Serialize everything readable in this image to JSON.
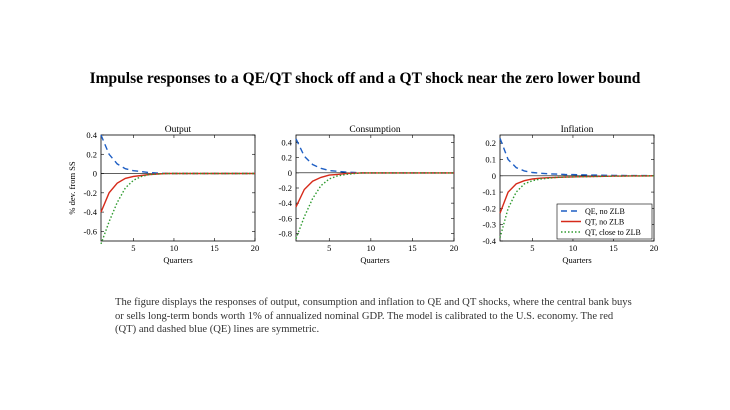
{
  "figure": {
    "title": "Impulse responses to a QE/QT shock off and a QT shock near the zero lower bound",
    "caption": "The figure displays the responses of output, consumption and inflation to QE and QT shocks, where the central bank buys or sells long-term bonds worth 1% of annualized nominal GDP. The model is calibrated to the U.S. economy. The red (QT) and dashed blue (QE) lines are symmetric."
  },
  "series_styles": {
    "QE, no ZLB": {
      "color": "#1f5fc4",
      "dash": "6,4"
    },
    "QT, no ZLB": {
      "color": "#d62a1a",
      "dash": ""
    },
    "QT, close to ZLB": {
      "color": "#2e9a2e",
      "dash": "1.5,2"
    }
  },
  "chart_data": [
    {
      "type": "line",
      "title": "Output",
      "xlabel": "Quarters",
      "ylabel": "% dev. from SS",
      "xlim": [
        1,
        20
      ],
      "ylim": [
        -0.7,
        0.4
      ],
      "xticks": [
        5,
        10,
        15,
        20
      ],
      "yticks": [
        0.4,
        0.2,
        0,
        -0.2,
        -0.4,
        -0.6
      ],
      "grid": false,
      "legend": null,
      "x": [
        1,
        2,
        3,
        4,
        5,
        6,
        7,
        8,
        9,
        10,
        11,
        12,
        13,
        14,
        15,
        16,
        17,
        18,
        19,
        20
      ],
      "series": [
        {
          "name": "QE, no ZLB",
          "values": [
            0.4,
            0.2,
            0.1,
            0.05,
            0.03,
            0.02,
            0.01,
            0.005,
            0,
            0,
            0,
            0,
            0,
            0,
            0,
            0,
            0,
            0,
            0,
            0
          ]
        },
        {
          "name": "QT, no ZLB",
          "values": [
            -0.4,
            -0.2,
            -0.1,
            -0.05,
            -0.03,
            -0.02,
            -0.01,
            -0.005,
            0,
            0,
            0,
            0,
            0,
            0,
            0,
            0,
            0,
            0,
            0,
            0
          ]
        },
        {
          "name": "QT, close to ZLB",
          "values": [
            -0.73,
            -0.5,
            -0.3,
            -0.15,
            -0.07,
            -0.03,
            -0.01,
            -0.005,
            0,
            0,
            0,
            0,
            0,
            0,
            0,
            0,
            0,
            0,
            0,
            0
          ]
        }
      ]
    },
    {
      "type": "line",
      "title": "Consumption",
      "xlabel": "Quarters",
      "ylabel": "",
      "xlim": [
        1,
        20
      ],
      "ylim": [
        -0.9,
        0.5
      ],
      "xticks": [
        5,
        10,
        15,
        20
      ],
      "yticks": [
        0.4,
        0.2,
        0,
        -0.2,
        -0.4,
        -0.6,
        -0.8
      ],
      "grid": false,
      "legend": null,
      "x": [
        1,
        2,
        3,
        4,
        5,
        6,
        7,
        8,
        9,
        10,
        11,
        12,
        13,
        14,
        15,
        16,
        17,
        18,
        19,
        20
      ],
      "series": [
        {
          "name": "QE, no ZLB",
          "values": [
            0.45,
            0.22,
            0.11,
            0.06,
            0.03,
            0.02,
            0.01,
            0.005,
            0,
            0,
            0,
            0,
            0,
            0,
            0,
            0,
            0,
            0,
            0,
            0
          ]
        },
        {
          "name": "QT, no ZLB",
          "values": [
            -0.45,
            -0.22,
            -0.11,
            -0.06,
            -0.03,
            -0.02,
            -0.01,
            -0.005,
            0,
            0,
            0,
            0,
            0,
            0,
            0,
            0,
            0,
            0,
            0,
            0
          ]
        },
        {
          "name": "QT, close to ZLB",
          "values": [
            -0.87,
            -0.58,
            -0.34,
            -0.17,
            -0.08,
            -0.04,
            -0.02,
            -0.01,
            0,
            0,
            0,
            0,
            0,
            0,
            0,
            0,
            0,
            0,
            0,
            0
          ]
        }
      ]
    },
    {
      "type": "line",
      "title": "Inflation",
      "xlabel": "Quarters",
      "ylabel": "",
      "xlim": [
        1,
        20
      ],
      "ylim": [
        -0.4,
        0.25
      ],
      "xticks": [
        5,
        10,
        15,
        20
      ],
      "yticks": [
        0.2,
        0.1,
        0,
        -0.1,
        -0.2,
        -0.3,
        -0.4
      ],
      "grid": false,
      "legend": "bottom-right",
      "x": [
        1,
        2,
        3,
        4,
        5,
        6,
        7,
        8,
        9,
        10,
        11,
        12,
        13,
        14,
        15,
        16,
        17,
        18,
        19,
        20
      ],
      "series": [
        {
          "name": "QE, no ZLB",
          "values": [
            0.23,
            0.1,
            0.05,
            0.03,
            0.02,
            0.015,
            0.012,
            0.01,
            0.008,
            0.007,
            0.006,
            0.005,
            0.004,
            0.003,
            0.002,
            0.002,
            0.001,
            0.001,
            0.001,
            0
          ]
        },
        {
          "name": "QT, no ZLB",
          "values": [
            -0.23,
            -0.1,
            -0.05,
            -0.03,
            -0.02,
            -0.015,
            -0.012,
            -0.01,
            -0.008,
            -0.007,
            -0.006,
            -0.005,
            -0.004,
            -0.003,
            -0.002,
            -0.002,
            -0.001,
            -0.001,
            -0.001,
            0
          ]
        },
        {
          "name": "QT, close to ZLB",
          "values": [
            -0.38,
            -0.2,
            -0.1,
            -0.05,
            -0.03,
            -0.02,
            -0.015,
            -0.01,
            -0.008,
            -0.007,
            -0.006,
            -0.005,
            -0.004,
            -0.003,
            -0.002,
            -0.002,
            -0.001,
            -0.001,
            -0.001,
            0
          ]
        }
      ]
    }
  ]
}
